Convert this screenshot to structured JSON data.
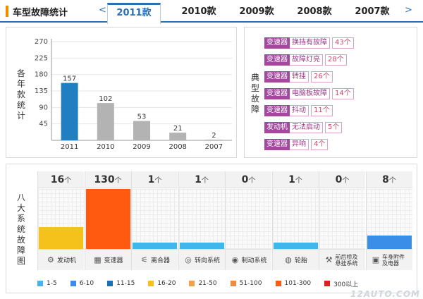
{
  "header": {
    "title": "车型故障统计",
    "prev": "<",
    "next": ">",
    "tabs": [
      "2011款",
      "2010款",
      "2009款",
      "2008款",
      "2007款"
    ],
    "active_tab": 0
  },
  "year_panel": {
    "ylabel": "各年款统计"
  },
  "typical_panel": {
    "label": "典型故障",
    "faults": [
      {
        "system": "变速器",
        "name": "换挡有故障",
        "count": "43个"
      },
      {
        "system": "变速器",
        "name": "故障灯亮",
        "count": "28个"
      },
      {
        "system": "变速器",
        "name": "转挂",
        "count": "26个"
      },
      {
        "system": "变速器",
        "name": "电脑板故障",
        "count": "14个"
      },
      {
        "system": "变速器",
        "name": "抖动",
        "count": "11个"
      },
      {
        "system": "发动机",
        "name": "无法启动",
        "count": "5个"
      },
      {
        "system": "变速器",
        "name": "异响",
        "count": "4个"
      }
    ]
  },
  "systems_panel": {
    "label": "八大系统故障图",
    "unit": "个",
    "systems": [
      {
        "name": "发动机",
        "count": 16,
        "level": 0.37,
        "color": "#f5c21b",
        "icon": "engine-icon"
      },
      {
        "name": "变速器",
        "count": 130,
        "level": 1.0,
        "color": "#ff5a10",
        "icon": "gearbox-icon"
      },
      {
        "name": "离合器",
        "count": 1,
        "level": 0.1,
        "color": "#3fb6ec",
        "icon": "clutch-icon"
      },
      {
        "name": "转向系统",
        "count": 1,
        "level": 0.1,
        "color": "#3fb6ec",
        "icon": "steering-wheel-icon"
      },
      {
        "name": "制动系统",
        "count": 0,
        "level": 0,
        "color": "#3fb6ec",
        "icon": "brake-icon"
      },
      {
        "name": "轮胎",
        "count": 1,
        "level": 0.1,
        "color": "#3fb6ec",
        "icon": "tire-icon"
      },
      {
        "name": "前后桥及悬挂系统",
        "count": 0,
        "level": 0,
        "color": "#3fb6ec",
        "icon": "suspension-icon"
      },
      {
        "name": "车身附件及电器",
        "count": 8,
        "level": 0.22,
        "color": "#3b8ee8",
        "icon": "car-body-icon"
      }
    ],
    "legend": [
      {
        "label": "1-5",
        "color": "#3fb6ec"
      },
      {
        "label": "6-10",
        "color": "#3b8ee8"
      },
      {
        "label": "11-15",
        "color": "#1f6fb6"
      },
      {
        "label": "16-20",
        "color": "#f5c21b"
      },
      {
        "label": "21-50",
        "color": "#f5a04a"
      },
      {
        "label": "51-100",
        "color": "#f58a3c"
      },
      {
        "label": "101-300",
        "color": "#ff5a10"
      },
      {
        "label": "300以上",
        "color": "#e02020"
      }
    ]
  },
  "watermark": "12AUTO.COM",
  "chart_data": {
    "type": "bar",
    "categories": [
      "2011",
      "2010",
      "2009",
      "2008",
      "2007"
    ],
    "values": [
      157,
      102,
      53,
      21,
      2
    ],
    "colors": [
      "#1f7fc0",
      "#b3b3b3",
      "#b3b3b3",
      "#b3b3b3",
      "#b3b3b3"
    ],
    "yticks": [
      45,
      90,
      135,
      180,
      225,
      270
    ],
    "ylim": [
      0,
      270
    ],
    "grid": true
  }
}
